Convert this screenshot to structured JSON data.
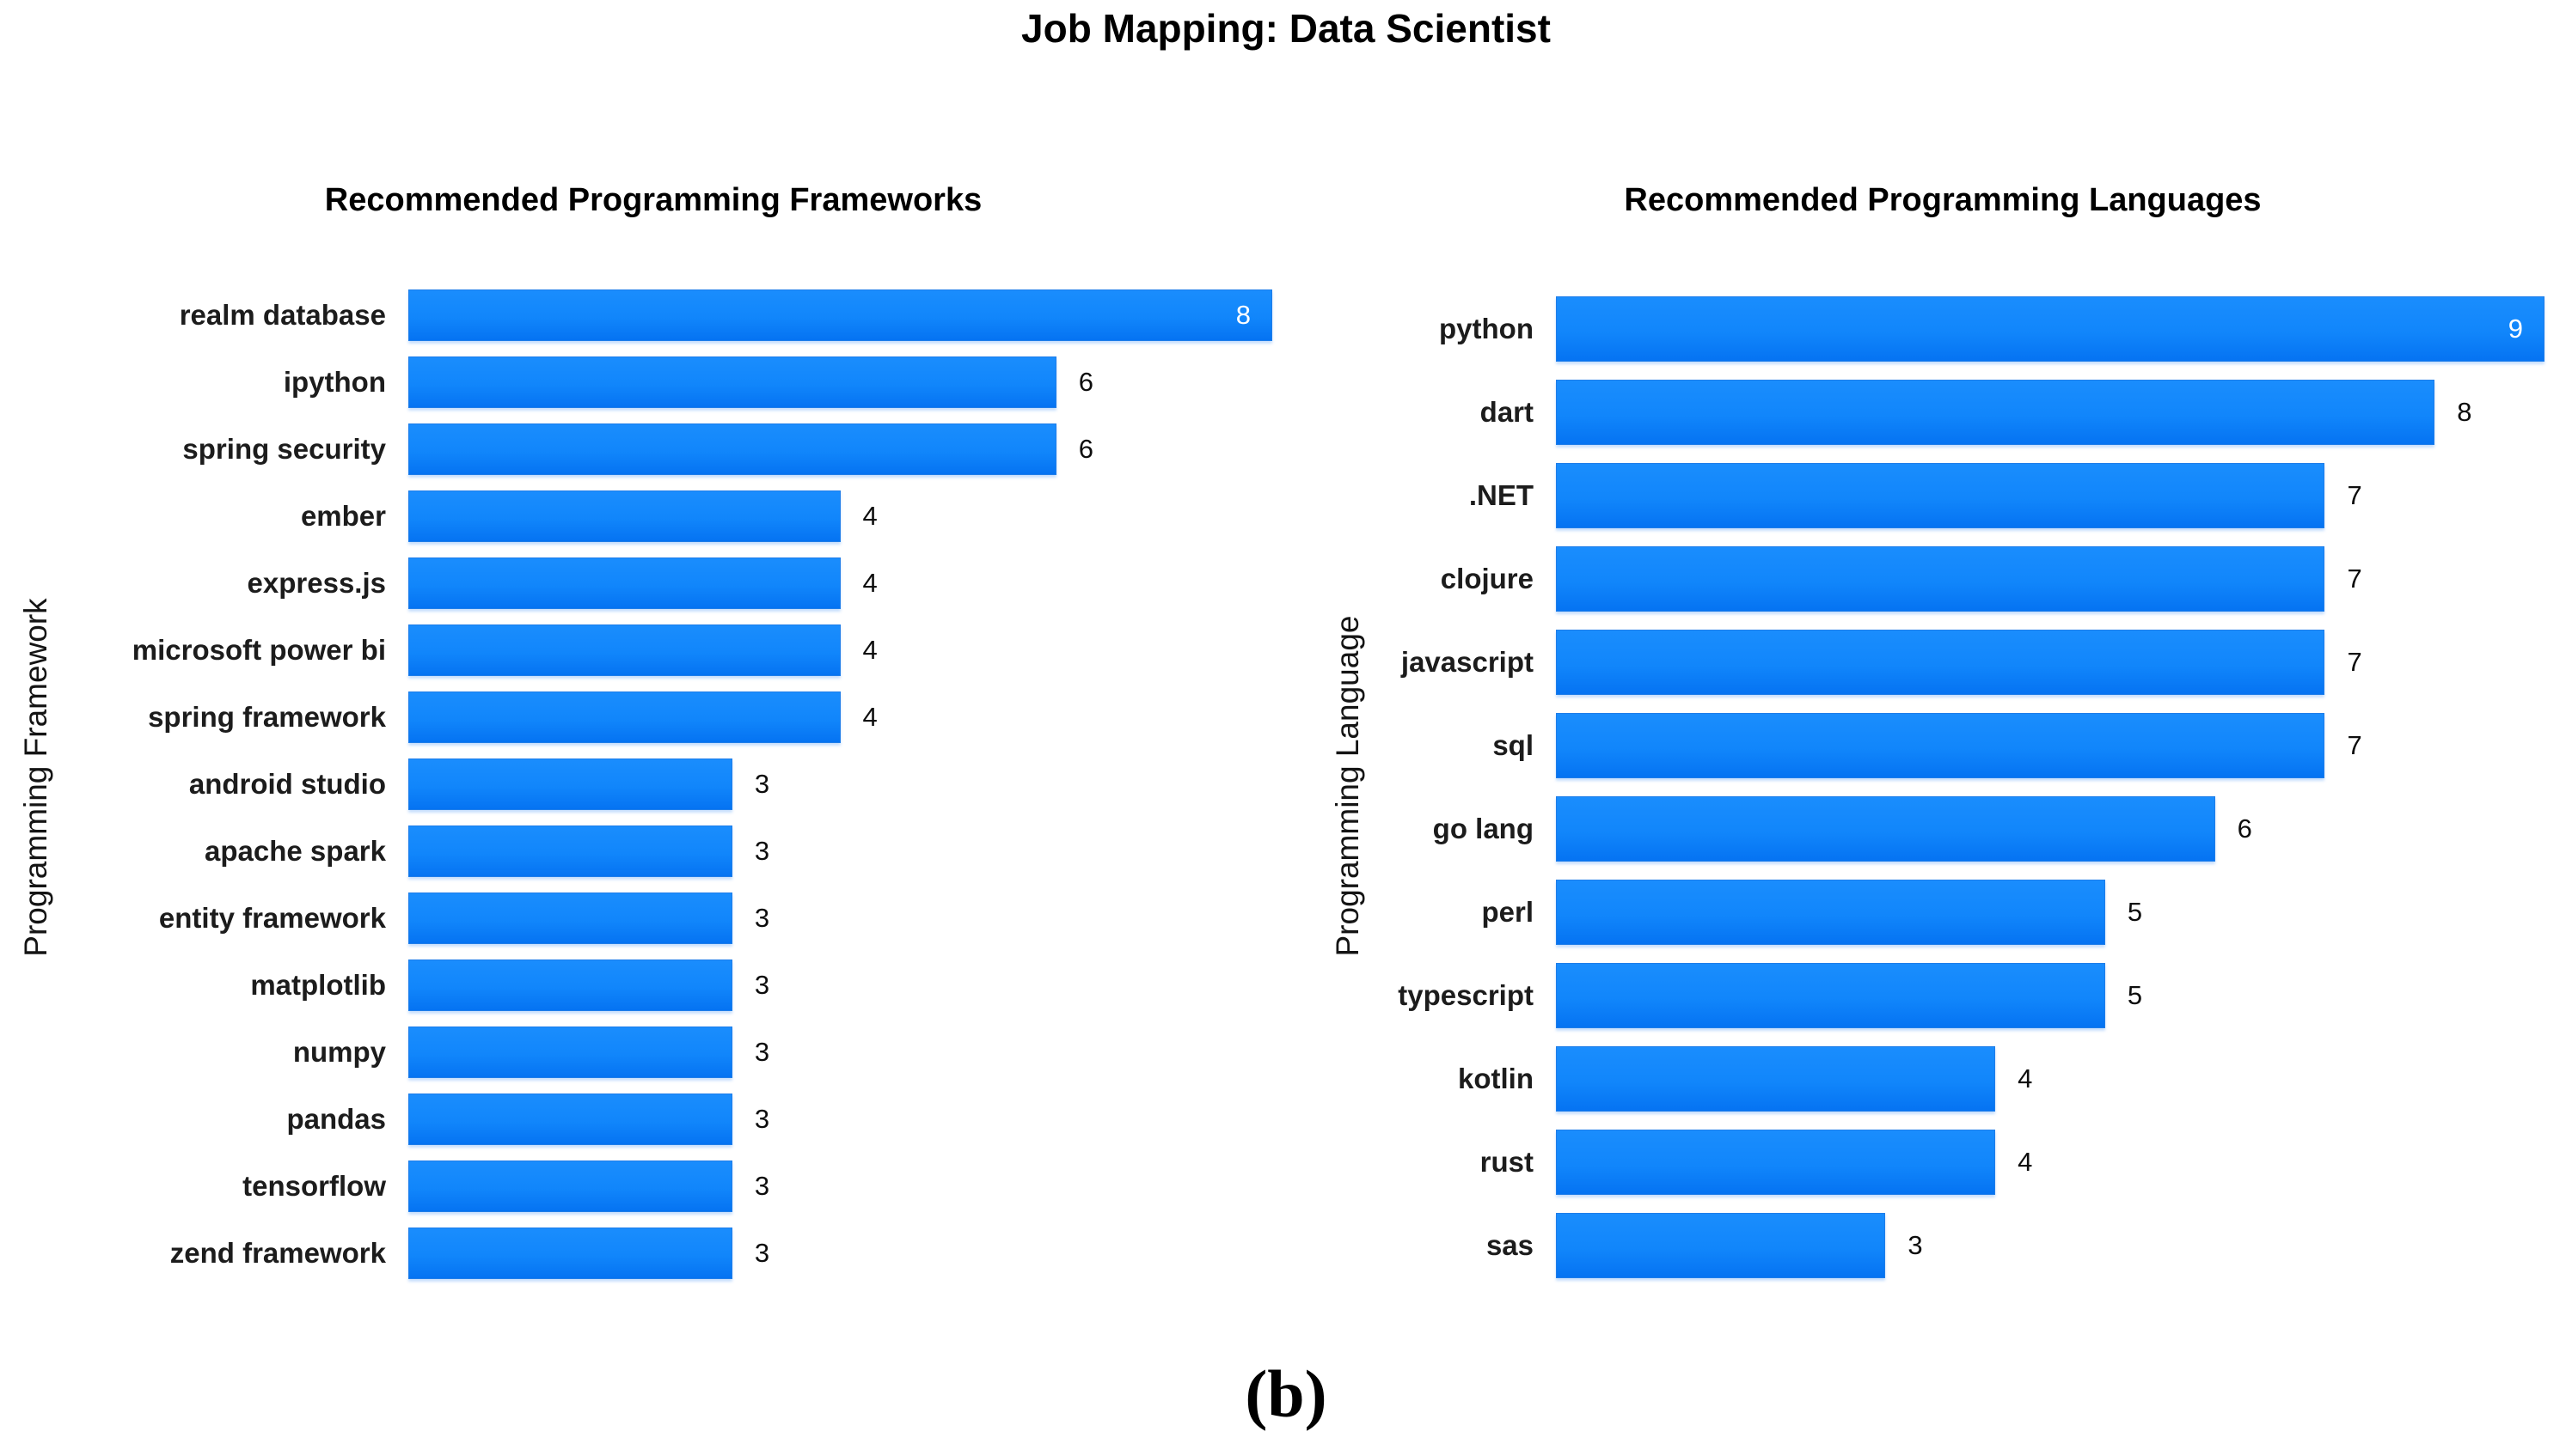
{
  "title": "Job Mapping: Data Scientist",
  "caption": "(b)",
  "colors": {
    "bar_fill": "#1186fb",
    "bar_fill_bottom": "#0573f2",
    "bar_border": "#1e7de9",
    "value_label_outside": "#0d0d0d",
    "value_label_inside": "#ffffff",
    "text": "#000000",
    "background": "#ffffff"
  },
  "chart_data": [
    {
      "type": "bar",
      "orientation": "horizontal",
      "title": "Recommended Programming Frameworks",
      "ylabel": "Programming Framework",
      "xlabel": "",
      "xlim": [
        0,
        8
      ],
      "grid": false,
      "legend": false,
      "categories": [
        "realm database",
        "ipython",
        "spring security",
        "ember",
        "express.js",
        "microsoft power bi",
        "spring framework",
        "android studio",
        "apache spark",
        "entity framework",
        "matplotlib",
        "numpy",
        "pandas",
        "tensorflow",
        "zend framework"
      ],
      "values": [
        8,
        6,
        6,
        4,
        4,
        4,
        4,
        3,
        3,
        3,
        3,
        3,
        3,
        3,
        3
      ],
      "label_inside": [
        true,
        false,
        false,
        false,
        false,
        false,
        false,
        false,
        false,
        false,
        false,
        false,
        false,
        false,
        false
      ]
    },
    {
      "type": "bar",
      "orientation": "horizontal",
      "title": "Recommended Programming Languages",
      "ylabel": "Programming Language",
      "xlabel": "",
      "xlim": [
        0,
        9
      ],
      "grid": false,
      "legend": false,
      "categories": [
        "python",
        "dart",
        ".NET",
        "clojure",
        "javascript",
        "sql",
        "go lang",
        "perl",
        "typescript",
        "kotlin",
        "rust",
        "sas"
      ],
      "values": [
        9,
        8,
        7,
        7,
        7,
        7,
        6,
        5,
        5,
        4,
        4,
        3
      ],
      "label_inside": [
        true,
        false,
        false,
        false,
        false,
        false,
        false,
        false,
        false,
        false,
        false,
        false
      ]
    }
  ]
}
